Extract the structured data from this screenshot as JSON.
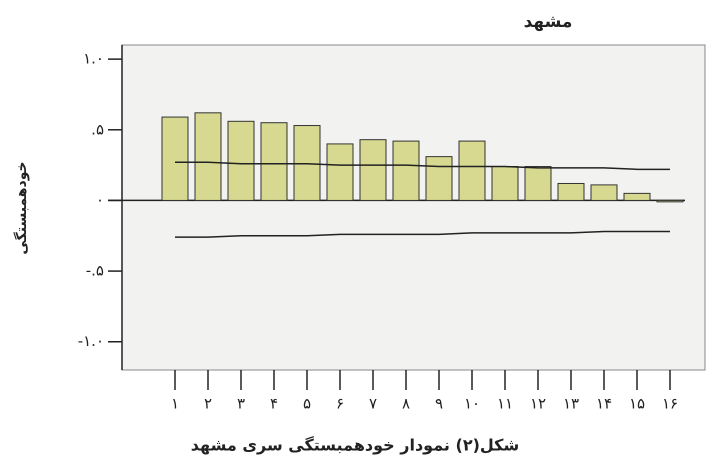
{
  "chart_data": {
    "type": "bar",
    "title": "مشهد",
    "y_label": "خودهمبستگی",
    "caption": "شکل(۲) نمودار خودهمبستگی سری مشهد",
    "categories": [
      "۱",
      "۲",
      "۳",
      "۴",
      "۵",
      "۶",
      "۷",
      "۸",
      "۹",
      "۱۰",
      "۱۱",
      "۱۲",
      "۱۳",
      "۱۴",
      "۱۵",
      "۱۶"
    ],
    "values": [
      0.59,
      0.62,
      0.56,
      0.55,
      0.53,
      0.4,
      0.43,
      0.42,
      0.31,
      0.42,
      0.24,
      0.24,
      0.12,
      0.11,
      0.05,
      -0.01
    ],
    "color": "#d6d98f",
    "confidence_limits": {
      "color": "#222222",
      "upper": [
        0.27,
        0.27,
        0.26,
        0.26,
        0.26,
        0.25,
        0.25,
        0.25,
        0.24,
        0.24,
        0.24,
        0.23,
        0.23,
        0.23,
        0.22,
        0.22
      ],
      "lower": [
        -0.26,
        -0.26,
        -0.25,
        -0.25,
        -0.25,
        -0.24,
        -0.24,
        -0.24,
        -0.24,
        -0.23,
        -0.23,
        -0.23,
        -0.23,
        -0.22,
        -0.22,
        -0.22
      ]
    },
    "ylim": [
      -1.2,
      1.1
    ],
    "yticks": [
      {
        "value": 1,
        "label": "۱.۰"
      },
      {
        "value": 0.5,
        "label": ".۵"
      },
      {
        "value": 0,
        "label": "۰"
      },
      {
        "value": -0.5,
        "label": "-.۵"
      },
      {
        "value": -1,
        "label": "-۱.۰"
      }
    ]
  }
}
